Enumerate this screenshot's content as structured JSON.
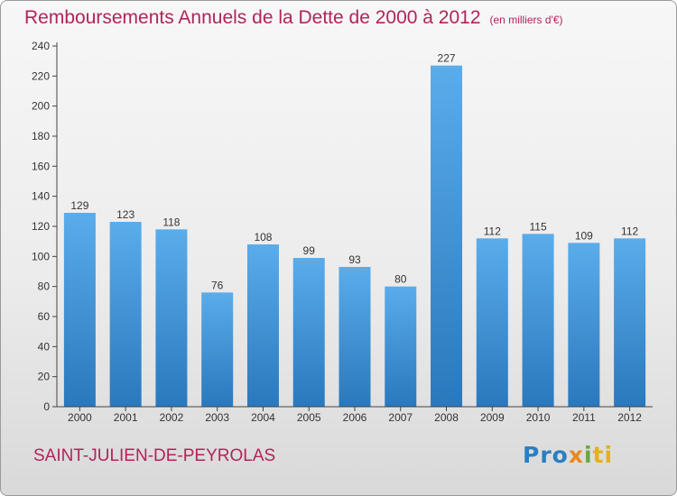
{
  "header": {
    "title": "Remboursements Annuels de la Dette de 2000 à 2012",
    "subtitle": "(en milliers d'€)"
  },
  "footer": {
    "commune": "SAINT-JULIEN-DE-PEYROLAS",
    "logo_parts": [
      "Pro",
      "x",
      "i",
      "ti"
    ]
  },
  "colors": {
    "title": "#b0245a",
    "bar_top": "#5aaceb",
    "bar_bottom": "#2a78bd",
    "axis": "#444444",
    "grid": "#d0d0d0"
  },
  "chart_data": {
    "type": "bar",
    "categories": [
      "2000",
      "2001",
      "2002",
      "2003",
      "2004",
      "2005",
      "2006",
      "2007",
      "2008",
      "2009",
      "2010",
      "2011",
      "2012"
    ],
    "values": [
      129,
      123,
      118,
      76,
      108,
      99,
      93,
      80,
      227,
      112,
      115,
      109,
      112
    ],
    "title": "Remboursements Annuels de la Dette de 2000 à 2012",
    "ylim": [
      0,
      240
    ],
    "yticks": [
      0,
      20,
      40,
      60,
      80,
      100,
      120,
      140,
      160,
      180,
      200,
      220,
      240
    ],
    "grid": false,
    "data_labels": true
  }
}
